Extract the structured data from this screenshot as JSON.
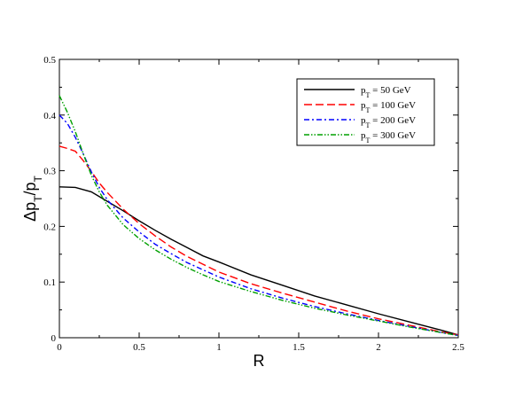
{
  "chart_data": {
    "type": "line",
    "xlabel": "R",
    "ylabel": {
      "base": "Δp",
      "sub1": "T",
      "slash": "/p",
      "sub2": "T"
    },
    "xlim": [
      0,
      2.5
    ],
    "ylim": [
      0,
      0.5
    ],
    "xticks": [
      "0",
      "0.5",
      "1",
      "1.5",
      "2",
      "2.5"
    ],
    "yticks": [
      "0",
      "0.1",
      "0.2",
      "0.3",
      "0.4",
      "0.5"
    ],
    "grid": false,
    "legend_position": "top-right",
    "series": [
      {
        "name": "p_T = 50 GeV",
        "label": {
          "p": "p",
          "sub": "T",
          "rest": " = 50 GeV"
        },
        "color": "#000000",
        "dash": "solid",
        "x": [
          0,
          0.1,
          0.2,
          0.3,
          0.4,
          0.5,
          0.6,
          0.7,
          0.8,
          0.9,
          1.0,
          1.2,
          1.4,
          1.6,
          1.8,
          2.0,
          2.2,
          2.4,
          2.5
        ],
        "y": [
          0.271,
          0.27,
          0.262,
          0.245,
          0.228,
          0.21,
          0.193,
          0.177,
          0.162,
          0.147,
          0.136,
          0.113,
          0.094,
          0.075,
          0.059,
          0.043,
          0.028,
          0.013,
          0.005
        ]
      },
      {
        "name": "p_T = 100 GeV",
        "label": {
          "p": "p",
          "sub": "T",
          "rest": " = 100 GeV"
        },
        "color": "#ff0000",
        "dash": "long-dash",
        "x": [
          0,
          0.05,
          0.1,
          0.15,
          0.2,
          0.25,
          0.3,
          0.4,
          0.5,
          0.6,
          0.7,
          0.8,
          0.9,
          1.0,
          1.2,
          1.4,
          1.6,
          1.8,
          2.0,
          2.2,
          2.4,
          2.5
        ],
        "y": [
          0.344,
          0.34,
          0.335,
          0.318,
          0.299,
          0.278,
          0.261,
          0.231,
          0.205,
          0.183,
          0.163,
          0.146,
          0.132,
          0.118,
          0.097,
          0.08,
          0.064,
          0.048,
          0.034,
          0.022,
          0.01,
          0.005
        ]
      },
      {
        "name": "p_T = 200 GeV",
        "label": {
          "p": "p",
          "sub": "T",
          "rest": " = 200 GeV"
        },
        "color": "#0000ff",
        "dash": "dash-dot",
        "x": [
          0,
          0.05,
          0.1,
          0.15,
          0.2,
          0.25,
          0.3,
          0.4,
          0.5,
          0.6,
          0.7,
          0.8,
          0.9,
          1.0,
          1.2,
          1.4,
          1.6,
          1.8,
          2.0,
          2.2,
          2.4,
          2.5
        ],
        "y": [
          0.4,
          0.385,
          0.36,
          0.33,
          0.298,
          0.27,
          0.248,
          0.215,
          0.19,
          0.168,
          0.151,
          0.135,
          0.122,
          0.109,
          0.088,
          0.071,
          0.056,
          0.043,
          0.031,
          0.02,
          0.009,
          0.004
        ]
      },
      {
        "name": "p_T = 300 GeV",
        "label": {
          "p": "p",
          "sub": "T",
          "rest": " = 300 GeV"
        },
        "color": "#00a000",
        "dash": "dash-dot-dot",
        "x": [
          0,
          0.05,
          0.1,
          0.15,
          0.2,
          0.25,
          0.3,
          0.4,
          0.5,
          0.6,
          0.7,
          0.8,
          0.9,
          1.0,
          1.2,
          1.4,
          1.6,
          1.8,
          2.0,
          2.2,
          2.4,
          2.5
        ],
        "y": [
          0.435,
          0.405,
          0.37,
          0.33,
          0.292,
          0.262,
          0.238,
          0.203,
          0.178,
          0.158,
          0.141,
          0.126,
          0.113,
          0.101,
          0.083,
          0.067,
          0.053,
          0.041,
          0.03,
          0.019,
          0.009,
          0.004
        ]
      }
    ]
  }
}
